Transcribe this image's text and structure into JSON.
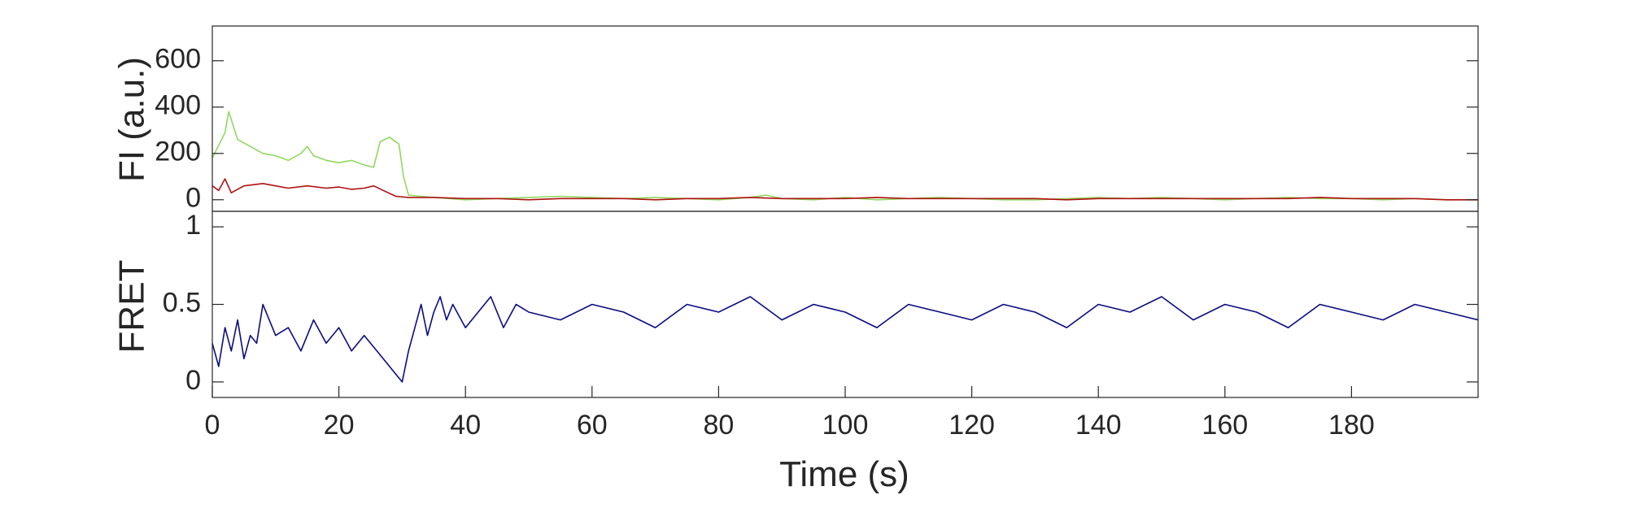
{
  "chart_data": [
    {
      "type": "line",
      "panel": "fluorescence",
      "ylabel": "FI (a.u.)",
      "xlim": [
        0,
        200
      ],
      "ylim": [
        -50,
        750
      ],
      "yticks": [
        0,
        200,
        400,
        600
      ],
      "grid": false,
      "legend": "none",
      "series": [
        {
          "color": "#90d860",
          "x": [
            0,
            2,
            2.6,
            4,
            6,
            8,
            10,
            12,
            14,
            15,
            16,
            18,
            20,
            22,
            24,
            25.5,
            26.5,
            28,
            29.5,
            30.2,
            31,
            35,
            40,
            45,
            50,
            55,
            60,
            65,
            70,
            75,
            80,
            85,
            87.5,
            90,
            95,
            100,
            105,
            110,
            115,
            120,
            125,
            130,
            135,
            140,
            145,
            150,
            155,
            160,
            165,
            170,
            175,
            180,
            185,
            190,
            195,
            200
          ],
          "y": [
            180,
            290,
            380,
            260,
            230,
            200,
            190,
            170,
            200,
            230,
            190,
            170,
            160,
            170,
            150,
            140,
            250,
            270,
            240,
            100,
            20,
            10,
            0,
            5,
            10,
            15,
            10,
            5,
            10,
            5,
            0,
            10,
            20,
            5,
            0,
            10,
            0,
            5,
            10,
            5,
            0,
            0,
            5,
            10,
            5,
            10,
            5,
            0,
            5,
            10,
            5,
            5,
            0,
            5,
            0,
            0
          ]
        },
        {
          "color": "#b01010",
          "x": [
            0,
            1,
            2,
            3,
            5,
            8,
            10,
            12,
            15,
            18,
            20,
            22,
            24,
            25.5,
            27,
            29,
            31,
            35,
            40,
            45,
            50,
            55,
            60,
            65,
            70,
            75,
            80,
            85,
            90,
            95,
            100,
            105,
            110,
            115,
            120,
            125,
            130,
            135,
            140,
            145,
            150,
            155,
            160,
            165,
            170,
            175,
            180,
            185,
            190,
            195,
            200
          ],
          "y": [
            60,
            40,
            90,
            30,
            60,
            70,
            60,
            50,
            60,
            50,
            55,
            45,
            50,
            60,
            40,
            15,
            10,
            10,
            5,
            5,
            0,
            5,
            5,
            5,
            0,
            5,
            5,
            10,
            5,
            5,
            5,
            10,
            5,
            5,
            5,
            5,
            5,
            0,
            5,
            5,
            5,
            5,
            5,
            5,
            5,
            10,
            5,
            5,
            5,
            0,
            0
          ]
        }
      ]
    },
    {
      "type": "line",
      "panel": "fret",
      "xlabel": "Time (s)",
      "ylabel": "FRET",
      "xlim": [
        0,
        200
      ],
      "ylim": [
        -0.1,
        1.1
      ],
      "yticks": [
        0,
        0.5,
        1
      ],
      "xticks": [
        0,
        20,
        40,
        60,
        80,
        100,
        120,
        140,
        160,
        180
      ],
      "grid": false,
      "legend": "none",
      "series": [
        {
          "color": "#0b0b80",
          "x": [
            0,
            1,
            2,
            3,
            4,
            5,
            6,
            7,
            8,
            10,
            12,
            14,
            15,
            16,
            18,
            20,
            22,
            24,
            26,
            28,
            29,
            30,
            31,
            32,
            33,
            34,
            35,
            36,
            37,
            38,
            40,
            42,
            44,
            46,
            48,
            50,
            55,
            60,
            65,
            70,
            75,
            80,
            85,
            90,
            95,
            100,
            105,
            110,
            115,
            120,
            125,
            130,
            135,
            140,
            145,
            150,
            155,
            160,
            165,
            170,
            175,
            180,
            185,
            190,
            195,
            200
          ],
          "y": [
            0.25,
            0.1,
            0.35,
            0.2,
            0.4,
            0.15,
            0.3,
            0.25,
            0.5,
            0.3,
            0.35,
            0.2,
            0.3,
            0.4,
            0.25,
            0.35,
            0.2,
            0.3,
            0.2,
            0.1,
            0.05,
            0.0,
            0.2,
            0.35,
            0.5,
            0.3,
            0.45,
            0.55,
            0.4,
            0.5,
            0.35,
            0.45,
            0.55,
            0.35,
            0.5,
            0.45,
            0.4,
            0.5,
            0.45,
            0.35,
            0.5,
            0.45,
            0.55,
            0.4,
            0.5,
            0.45,
            0.35,
            0.5,
            0.45,
            0.4,
            0.5,
            0.45,
            0.35,
            0.5,
            0.45,
            0.55,
            0.4,
            0.5,
            0.45,
            0.35,
            0.5,
            0.45,
            0.4,
            0.5,
            0.45,
            0.4
          ]
        }
      ]
    }
  ]
}
